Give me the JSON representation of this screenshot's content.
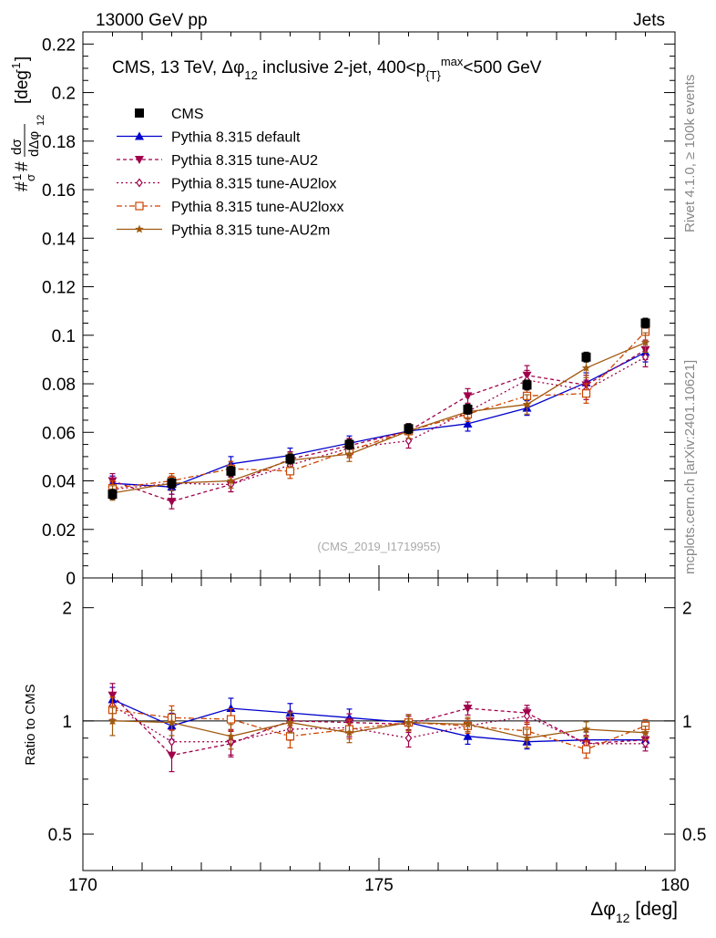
{
  "header": {
    "left": "13000 GeV pp",
    "right": "Jets"
  },
  "side_labels": {
    "rivet": "Rivet 4.1.0, ≥ 100k events",
    "mcplots": "mcplots.cern.ch [arXiv:2401.10621]"
  },
  "watermark": "(CMS_2019_I1719955)",
  "title": {
    "prefix": "CMS, 13 TeV, ",
    "var": "Δφ",
    "var_sub": "12",
    "mid": " inclusive 2-jet, 400<p",
    "pt_sub": "{T}",
    "pt_sup": "max",
    "suffix": "<500 GeV"
  },
  "axis": {
    "x_label_main": "Δφ",
    "x_label_sub": "12",
    "x_label_unit": " [deg]",
    "y_label_prefix": "#",
    "y_label_frac_top": "1",
    "y_label_frac_bottom": "σ",
    "y_label_mid": "#",
    "y_label_d_top": "dσ",
    "y_label_d_bottom": "dΔφ",
    "y_label_d_sub": "12",
    "y_label_unit": "[deg",
    "y_label_unit_sup": "-1",
    "y_label_unit_end": "]",
    "ratio_label": "Ratio to CMS",
    "x_ticks": [
      "170",
      "175",
      "180"
    ],
    "y_ticks": [
      "0",
      "0.02",
      "0.04",
      "0.06",
      "0.08",
      "0.1",
      "0.12",
      "0.14",
      "0.16",
      "0.18",
      "0.2",
      "0.22"
    ],
    "ratio_ticks": [
      "0.5",
      "1",
      "2"
    ]
  },
  "chart_data": {
    "type": "scatter",
    "x": [
      170.5,
      171.5,
      172.5,
      173.5,
      174.5,
      175.5,
      176.5,
      177.5,
      178.5,
      179.5
    ],
    "xlim": [
      170,
      180
    ],
    "ylim": [
      0,
      0.225
    ],
    "ratio_ylim": [
      0.4,
      2.4
    ],
    "xlabel": "Δφ_12 [deg]",
    "ylabel": "1/σ dσ/dΔφ_12 [deg^-1]",
    "series": [
      {
        "name": "CMS",
        "color": "#000000",
        "marker": "square",
        "style": "points",
        "values": [
          0.0345,
          0.039,
          0.044,
          0.049,
          0.055,
          0.0615,
          0.0695,
          0.0795,
          0.091,
          0.105
        ],
        "errors": [
          0.002,
          0.002,
          0.002,
          0.002,
          0.002,
          0.002,
          0.002,
          0.002,
          0.002,
          0.002
        ],
        "ratio": [
          1,
          1,
          1,
          1,
          1,
          1,
          1,
          1,
          1,
          1
        ]
      },
      {
        "name": "Pythia 8.315 default",
        "color": "#0000cc",
        "marker": "triangle-up",
        "dash": "",
        "values": [
          0.039,
          0.0375,
          0.047,
          0.0505,
          0.0555,
          0.0605,
          0.0635,
          0.07,
          0.0805,
          0.093
        ],
        "errors": [
          0.003,
          0.003,
          0.003,
          0.003,
          0.003,
          0.003,
          0.003,
          0.003,
          0.004,
          0.004
        ],
        "ratio": [
          1.14,
          0.97,
          1.08,
          1.05,
          1.02,
          0.99,
          0.91,
          0.88,
          0.89,
          0.89
        ]
      },
      {
        "name": "Pythia 8.315 tune-AU2",
        "color": "#a0004a",
        "marker": "triangle-down",
        "dash": "4,3",
        "values": [
          0.04,
          0.0315,
          0.0385,
          0.049,
          0.0545,
          0.0605,
          0.075,
          0.0835,
          0.0795,
          0.094
        ],
        "errors": [
          0.003,
          0.003,
          0.003,
          0.003,
          0.003,
          0.003,
          0.003,
          0.004,
          0.004,
          0.004
        ],
        "ratio": [
          1.17,
          0.81,
          0.87,
          1.0,
          0.99,
          0.98,
          1.08,
          1.05,
          0.87,
          0.89
        ]
      },
      {
        "name": "Pythia 8.315 tune-AU2lox",
        "color": "#a0004a",
        "marker": "diamond",
        "dash": "2,3",
        "values": [
          0.0365,
          0.039,
          0.0385,
          0.0465,
          0.0535,
          0.0565,
          0.0685,
          0.0815,
          0.0775,
          0.091
        ],
        "errors": [
          0.003,
          0.003,
          0.003,
          0.003,
          0.003,
          0.003,
          0.003,
          0.004,
          0.004,
          0.004
        ],
        "ratio": [
          1.1,
          0.88,
          0.88,
          0.95,
          0.96,
          0.9,
          0.97,
          1.03,
          0.87,
          0.87
        ]
      },
      {
        "name": "Pythia 8.315 tune-AU2loxx",
        "color": "#cc4400",
        "marker": "square-open",
        "dash": "6,3,2,3",
        "values": [
          0.037,
          0.04,
          0.045,
          0.044,
          0.0525,
          0.0605,
          0.0675,
          0.075,
          0.076,
          0.1015
        ],
        "errors": [
          0.003,
          0.003,
          0.003,
          0.003,
          0.003,
          0.003,
          0.003,
          0.004,
          0.004,
          0.004
        ],
        "ratio": [
          1.07,
          1.02,
          1.01,
          0.91,
          0.95,
          0.99,
          0.97,
          0.94,
          0.84,
          0.97
        ]
      },
      {
        "name": "Pythia 8.315 tune-AU2m",
        "color": "#a05a10",
        "marker": "star",
        "dash": "",
        "values": [
          0.035,
          0.039,
          0.04,
          0.0485,
          0.051,
          0.0605,
          0.0685,
          0.0715,
          0.0865,
          0.097
        ],
        "errors": [
          0.003,
          0.003,
          0.003,
          0.003,
          0.003,
          0.003,
          0.003,
          0.004,
          0.004,
          0.004
        ],
        "ratio": [
          1.0,
          0.99,
          0.91,
          0.99,
          0.93,
          0.99,
          0.98,
          0.9,
          0.95,
          0.93
        ]
      }
    ]
  }
}
